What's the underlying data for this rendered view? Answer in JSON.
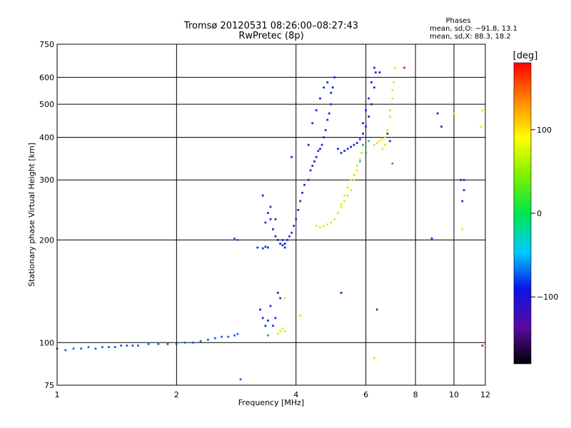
{
  "title_line1": "Tromsø 20120531 08:26:00–08:27:43",
  "title_line2": "RwPretec (8p)",
  "phases": {
    "title": "Phases",
    "line_o": "mean, sd,O: −91.8, 13.1",
    "line_x": "mean, sd,X:  88.3, 18.2"
  },
  "colorbar": {
    "label": "[deg]",
    "ticks": [
      "100",
      "0",
      "−100"
    ],
    "tick_values": [
      100,
      0,
      -100
    ],
    "range": [
      -180,
      180
    ]
  },
  "chart_data": {
    "type": "scatter",
    "xlabel": "Frequency [MHz]",
    "ylabel": "Stationary phase Virtual Height [km]",
    "xscale": "log",
    "yscale": "log",
    "xlim": [
      1,
      12
    ],
    "ylim": [
      75,
      750
    ],
    "x_ticks": [
      1,
      2,
      4,
      6,
      8,
      10,
      12
    ],
    "x_tick_labels": [
      "1",
      "2",
      "4",
      "6",
      "8",
      "10",
      "12"
    ],
    "y_ticks": [
      75,
      100,
      200,
      300,
      400,
      500,
      600,
      750
    ],
    "y_tick_labels": [
      "75",
      "100",
      "200",
      "300",
      "400",
      "500",
      "600",
      "750"
    ],
    "grid": true,
    "series": [
      {
        "color": "#1e64e6",
        "points": [
          [
            1.0,
            96
          ],
          [
            1.05,
            95
          ],
          [
            1.1,
            96
          ],
          [
            1.15,
            96
          ],
          [
            1.2,
            97
          ],
          [
            1.25,
            96
          ],
          [
            1.3,
            97
          ],
          [
            1.35,
            97
          ],
          [
            1.4,
            97
          ],
          [
            1.45,
            98
          ],
          [
            1.5,
            98
          ],
          [
            1.55,
            98
          ],
          [
            1.6,
            98
          ],
          [
            1.7,
            99
          ],
          [
            1.8,
            99
          ],
          [
            1.9,
            99
          ],
          [
            2.0,
            99
          ],
          [
            2.1,
            100
          ],
          [
            2.2,
            100
          ],
          [
            2.3,
            101
          ],
          [
            2.4,
            102
          ],
          [
            2.5,
            103
          ],
          [
            2.6,
            104
          ],
          [
            2.7,
            104
          ],
          [
            2.8,
            105
          ],
          [
            2.85,
            106
          ],
          [
            2.8,
            202
          ],
          [
            2.85,
            200
          ],
          [
            2.9,
            78
          ]
        ]
      },
      {
        "color": "#1a2ee0",
        "points": [
          [
            3.2,
            190
          ],
          [
            3.3,
            189
          ],
          [
            3.35,
            191
          ],
          [
            3.4,
            190
          ],
          [
            3.25,
            125
          ],
          [
            3.3,
            118
          ],
          [
            3.35,
            112
          ],
          [
            3.4,
            116
          ],
          [
            3.45,
            128
          ],
          [
            3.5,
            112
          ],
          [
            3.55,
            118
          ],
          [
            3.6,
            140
          ],
          [
            3.65,
            135
          ],
          [
            3.35,
            225
          ],
          [
            3.4,
            240
          ],
          [
            3.45,
            230
          ],
          [
            3.5,
            215
          ],
          [
            3.55,
            205
          ],
          [
            3.6,
            200
          ],
          [
            3.65,
            195
          ],
          [
            3.7,
            193
          ],
          [
            3.75,
            195
          ],
          [
            3.8,
            200
          ],
          [
            3.85,
            205
          ],
          [
            3.9,
            210
          ],
          [
            3.95,
            220
          ],
          [
            4.0,
            230
          ],
          [
            4.05,
            245
          ],
          [
            4.1,
            260
          ],
          [
            4.15,
            275
          ],
          [
            4.2,
            290
          ],
          [
            4.3,
            300
          ],
          [
            4.4,
            330
          ],
          [
            4.5,
            350
          ],
          [
            4.6,
            370
          ],
          [
            4.7,
            400
          ],
          [
            4.8,
            450
          ],
          [
            4.9,
            500
          ],
          [
            4.95,
            560
          ],
          [
            5.0,
            600
          ],
          [
            4.9,
            540
          ],
          [
            4.85,
            470
          ],
          [
            4.75,
            420
          ],
          [
            4.65,
            380
          ],
          [
            4.55,
            365
          ],
          [
            4.45,
            340
          ],
          [
            4.35,
            320
          ],
          [
            4.3,
            380
          ],
          [
            4.4,
            440
          ],
          [
            4.5,
            480
          ],
          [
            4.6,
            520
          ],
          [
            4.7,
            560
          ],
          [
            4.8,
            580
          ],
          [
            5.1,
            370
          ],
          [
            5.2,
            360
          ],
          [
            5.3,
            365
          ],
          [
            5.4,
            370
          ],
          [
            5.5,
            375
          ],
          [
            5.6,
            380
          ],
          [
            5.7,
            385
          ],
          [
            5.8,
            395
          ],
          [
            5.9,
            410
          ],
          [
            6.0,
            430
          ],
          [
            6.1,
            460
          ],
          [
            6.2,
            500
          ],
          [
            6.3,
            560
          ],
          [
            6.35,
            620
          ],
          [
            5.9,
            440
          ],
          [
            6.0,
            480
          ],
          [
            6.1,
            520
          ],
          [
            6.2,
            580
          ],
          [
            6.3,
            640
          ],
          [
            6.5,
            620
          ],
          [
            3.75,
            190
          ],
          [
            3.9,
            350
          ],
          [
            5.2,
            140
          ],
          [
            8.8,
            202
          ],
          [
            9.1,
            470
          ],
          [
            10.5,
            260
          ],
          [
            10.4,
            300
          ]
        ]
      },
      {
        "color": "#5a1aa0",
        "points": [
          [
            3.3,
            270
          ],
          [
            3.45,
            250
          ],
          [
            3.55,
            230
          ],
          [
            3.7,
            200
          ],
          [
            6.4,
            125
          ],
          [
            9.3,
            430
          ],
          [
            10.6,
            300
          ],
          [
            10.6,
            280
          ],
          [
            6.9,
            390
          ],
          [
            6.8,
            410
          ]
        ]
      },
      {
        "color": "#e6e61a",
        "points": [
          [
            3.6,
            106
          ],
          [
            3.65,
            108
          ],
          [
            3.7,
            110
          ],
          [
            3.75,
            108
          ],
          [
            4.5,
            220
          ],
          [
            4.6,
            218
          ],
          [
            4.7,
            220
          ],
          [
            4.8,
            222
          ],
          [
            4.9,
            225
          ],
          [
            5.0,
            230
          ],
          [
            5.1,
            240
          ],
          [
            5.2,
            255
          ],
          [
            5.3,
            270
          ],
          [
            5.4,
            285
          ],
          [
            5.5,
            300
          ],
          [
            5.6,
            310
          ],
          [
            5.7,
            330
          ],
          [
            5.8,
            345
          ],
          [
            5.85,
            360
          ],
          [
            5.2,
            250
          ],
          [
            5.3,
            260
          ],
          [
            5.4,
            270
          ],
          [
            5.5,
            280
          ],
          [
            5.6,
            300
          ],
          [
            5.7,
            320
          ],
          [
            6.3,
            380
          ],
          [
            6.4,
            385
          ],
          [
            6.5,
            390
          ],
          [
            6.6,
            395
          ],
          [
            6.7,
            400
          ],
          [
            6.8,
            420
          ],
          [
            6.9,
            460
          ],
          [
            7.0,
            520
          ],
          [
            7.05,
            580
          ],
          [
            7.1,
            640
          ],
          [
            6.9,
            480
          ],
          [
            7.0,
            550
          ],
          [
            6.6,
            370
          ],
          [
            6.7,
            380
          ],
          [
            4.1,
            120
          ],
          [
            3.75,
            135
          ],
          [
            6.3,
            90
          ],
          [
            10.0,
            470
          ],
          [
            11.8,
            480
          ],
          [
            11.7,
            430
          ],
          [
            10.5,
            215
          ]
        ]
      },
      {
        "color": "#1ab450",
        "points": [
          [
            3.4,
            105
          ],
          [
            6.0,
            360
          ],
          [
            7.0,
            335
          ],
          [
            5.9,
            380
          ]
        ]
      },
      {
        "color": "#e61a1a",
        "points": [
          [
            7.5,
            640
          ],
          [
            11.8,
            98
          ]
        ]
      },
      {
        "color": "#1ac8c8",
        "points": [
          [
            6.1,
            390
          ],
          [
            5.8,
            340
          ]
        ]
      }
    ]
  }
}
